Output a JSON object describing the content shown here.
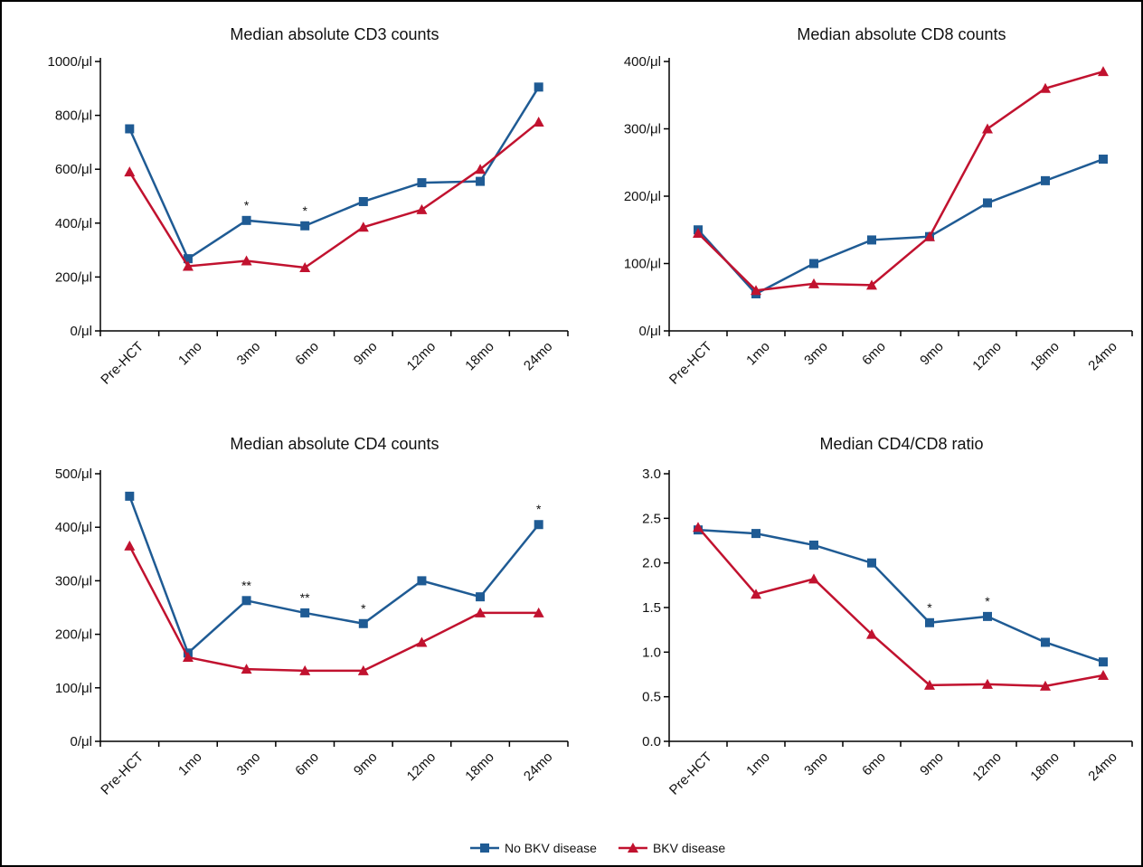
{
  "chart_data": [
    {
      "type": "line",
      "title": "Median absolute CD3 counts",
      "categories": [
        "Pre-HCT",
        "1mo",
        "3mo",
        "6mo",
        "9mo",
        "12mo",
        "18mo",
        "24mo"
      ],
      "series": [
        {
          "name": "No BKV disease",
          "color": "#1f5b94",
          "marker": "square",
          "values": [
            750,
            268,
            410,
            390,
            480,
            550,
            555,
            905
          ]
        },
        {
          "name": "BKV disease",
          "color": "#c1122f",
          "marker": "triangle",
          "values": [
            590,
            240,
            260,
            235,
            385,
            450,
            600,
            775
          ]
        }
      ],
      "ylim": [
        0,
        1000
      ],
      "yticks": [
        {
          "value": 0,
          "label": "0/μl"
        },
        {
          "value": 200,
          "label": "200/μl"
        },
        {
          "value": 400,
          "label": "400/μl"
        },
        {
          "value": 600,
          "label": "600/μl"
        },
        {
          "value": 800,
          "label": "800/μl"
        },
        {
          "value": 1000,
          "label": "1000/μl"
        }
      ],
      "annotations": [
        {
          "text": "*",
          "x": "3mo"
        },
        {
          "text": "*",
          "x": "6mo"
        }
      ]
    },
    {
      "type": "line",
      "title": "Median absolute CD8 counts",
      "categories": [
        "Pre-HCT",
        "1mo",
        "3mo",
        "6mo",
        "9mo",
        "12mo",
        "18mo",
        "24mo"
      ],
      "series": [
        {
          "name": "No BKV disease",
          "color": "#1f5b94",
          "marker": "square",
          "values": [
            150,
            55,
            100,
            135,
            140,
            190,
            223,
            255
          ]
        },
        {
          "name": "BKV disease",
          "color": "#c1122f",
          "marker": "triangle",
          "values": [
            145,
            60,
            70,
            68,
            140,
            300,
            360,
            385
          ]
        }
      ],
      "ylim": [
        0,
        400
      ],
      "yticks": [
        {
          "value": 0,
          "label": "0/μl"
        },
        {
          "value": 100,
          "label": "100/μl"
        },
        {
          "value": 200,
          "label": "200/μl"
        },
        {
          "value": 300,
          "label": "300/μl"
        },
        {
          "value": 400,
          "label": "400/μl"
        }
      ],
      "annotations": []
    },
    {
      "type": "line",
      "title": "Median absolute CD4 counts",
      "categories": [
        "Pre-HCT",
        "1mo",
        "3mo",
        "6mo",
        "9mo",
        "12mo",
        "18mo",
        "24mo"
      ],
      "series": [
        {
          "name": "No BKV disease",
          "color": "#1f5b94",
          "marker": "square",
          "values": [
            458,
            165,
            263,
            240,
            220,
            300,
            270,
            405
          ]
        },
        {
          "name": "BKV disease",
          "color": "#c1122f",
          "marker": "triangle",
          "values": [
            365,
            157,
            135,
            132,
            132,
            185,
            240,
            240
          ]
        }
      ],
      "ylim": [
        0,
        500
      ],
      "yticks": [
        {
          "value": 0,
          "label": "0/μl"
        },
        {
          "value": 100,
          "label": "100/μl"
        },
        {
          "value": 200,
          "label": "200/μl"
        },
        {
          "value": 300,
          "label": "300/μl"
        },
        {
          "value": 400,
          "label": "400/μl"
        },
        {
          "value": 500,
          "label": "500/μl"
        }
      ],
      "annotations": [
        {
          "text": "**",
          "x": "3mo"
        },
        {
          "text": "**",
          "x": "6mo"
        },
        {
          "text": "*",
          "x": "9mo"
        },
        {
          "text": "*",
          "x": "24mo"
        }
      ]
    },
    {
      "type": "line",
      "title": "Median CD4/CD8 ratio",
      "categories": [
        "Pre-HCT",
        "1mo",
        "3mo",
        "6mo",
        "9mo",
        "12mo",
        "18mo",
        "24mo"
      ],
      "series": [
        {
          "name": "No BKV disease",
          "color": "#1f5b94",
          "marker": "square",
          "values": [
            2.37,
            2.33,
            2.2,
            2.0,
            1.33,
            1.4,
            1.11,
            0.89
          ]
        },
        {
          "name": "BKV disease",
          "color": "#c1122f",
          "marker": "triangle",
          "values": [
            2.4,
            1.65,
            1.82,
            1.2,
            0.63,
            0.64,
            0.62,
            0.74
          ]
        }
      ],
      "ylim": [
        0,
        3
      ],
      "yticks": [
        {
          "value": 0,
          "label": "0.0"
        },
        0.5,
        {
          "value": 1,
          "label": "1.0"
        },
        1.5,
        {
          "value": 2,
          "label": "2.0"
        },
        2.5,
        {
          "value": 3,
          "label": "3.0"
        }
      ],
      "annotations": [
        {
          "text": "*",
          "x": "9mo"
        },
        {
          "text": "*",
          "x": "12mo"
        }
      ]
    }
  ]
}
